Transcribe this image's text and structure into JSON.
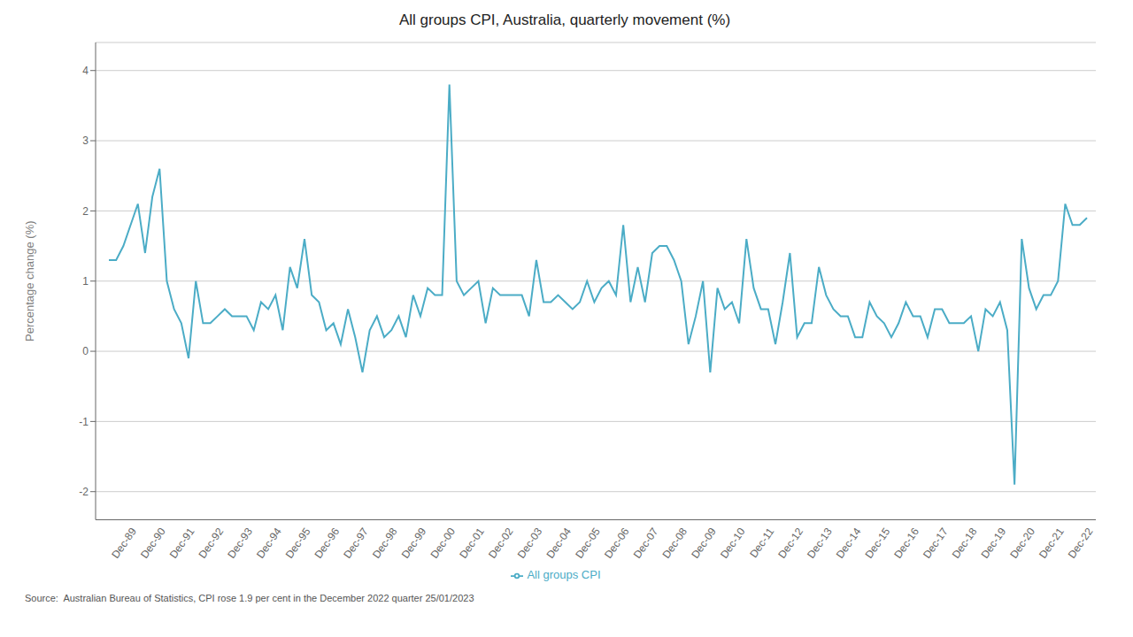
{
  "chart_data": {
    "type": "line",
    "title": "All groups CPI, Australia, quarterly movement (%)",
    "ylabel": "Percentage change (%)",
    "categories": [
      null,
      null,
      null,
      "Dec-89",
      null,
      null,
      null,
      "Dec-90",
      null,
      null,
      null,
      "Dec-91",
      null,
      null,
      null,
      "Dec-92",
      null,
      null,
      null,
      "Dec-93",
      null,
      null,
      null,
      "Dec-94",
      null,
      null,
      null,
      "Dec-95",
      null,
      null,
      null,
      "Dec-96",
      null,
      null,
      null,
      "Dec-97",
      null,
      null,
      null,
      "Dec-98",
      null,
      null,
      null,
      "Dec-99",
      null,
      null,
      null,
      "Dec-00",
      null,
      null,
      null,
      "Dec-01",
      null,
      null,
      null,
      "Dec-02",
      null,
      null,
      null,
      "Dec-03",
      null,
      null,
      null,
      "Dec-04",
      null,
      null,
      null,
      "Dec-05",
      null,
      null,
      null,
      "Dec-06",
      null,
      null,
      null,
      "Dec-07",
      null,
      null,
      null,
      "Dec-08",
      null,
      null,
      null,
      "Dec-09",
      null,
      null,
      null,
      "Dec-10",
      null,
      null,
      null,
      "Dec-11",
      null,
      null,
      null,
      "Dec-12",
      null,
      null,
      null,
      "Dec-13",
      null,
      null,
      null,
      "Dec-14",
      null,
      null,
      null,
      "Dec-15",
      null,
      null,
      null,
      "Dec-16",
      null,
      null,
      null,
      "Dec-17",
      null,
      null,
      null,
      "Dec-18",
      null,
      null,
      null,
      "Dec-19",
      null,
      null,
      null,
      "Dec-20",
      null,
      null,
      null,
      "Dec-21",
      null,
      null,
      null,
      "Dec-22"
    ],
    "series": [
      {
        "name": "All groups CPI",
        "color": "#4bacc6",
        "values": [
          1.3,
          1.3,
          1.5,
          1.8,
          2.1,
          1.4,
          2.2,
          2.6,
          1.0,
          0.6,
          0.4,
          -0.1,
          1.0,
          0.4,
          0.4,
          0.5,
          0.6,
          0.5,
          0.5,
          0.5,
          0.3,
          0.7,
          0.6,
          0.8,
          0.3,
          1.2,
          0.9,
          1.6,
          0.8,
          0.7,
          0.3,
          0.4,
          0.1,
          0.6,
          0.2,
          -0.3,
          0.3,
          0.5,
          0.2,
          0.3,
          0.5,
          0.2,
          0.8,
          0.5,
          0.9,
          0.8,
          0.8,
          3.8,
          1.0,
          0.8,
          0.9,
          1.0,
          0.4,
          0.9,
          0.8,
          0.8,
          0.8,
          0.8,
          0.5,
          1.3,
          0.7,
          0.7,
          0.8,
          0.7,
          0.6,
          0.7,
          1.0,
          0.7,
          0.9,
          1.0,
          0.8,
          1.8,
          0.7,
          1.2,
          0.7,
          1.4,
          1.5,
          1.5,
          1.3,
          1.0,
          0.1,
          0.5,
          1.0,
          -0.3,
          0.9,
          0.6,
          0.7,
          0.4,
          1.6,
          0.9,
          0.6,
          0.6,
          0.1,
          0.7,
          1.4,
          0.2,
          0.4,
          0.4,
          1.2,
          0.8,
          0.6,
          0.5,
          0.5,
          0.2,
          0.2,
          0.7,
          0.5,
          0.4,
          0.2,
          0.4,
          0.7,
          0.5,
          0.5,
          0.2,
          0.6,
          0.6,
          0.4,
          0.4,
          0.4,
          0.5,
          0.0,
          0.6,
          0.5,
          0.7,
          0.3,
          -1.9,
          1.6,
          0.9,
          0.6,
          0.8,
          0.8,
          1.0,
          2.1,
          1.8,
          1.8,
          1.9
        ]
      }
    ],
    "ylim": [
      -2.4,
      4.4
    ],
    "yticks": [
      -2,
      -1,
      0,
      1,
      2,
      3,
      4
    ],
    "grid": true,
    "legend": "bottom",
    "annotations": [
      "Source:  Australian Bureau of Statistics, CPI rose 1.9 per cent in the December 2022 quarter 25/01/2023"
    ]
  }
}
